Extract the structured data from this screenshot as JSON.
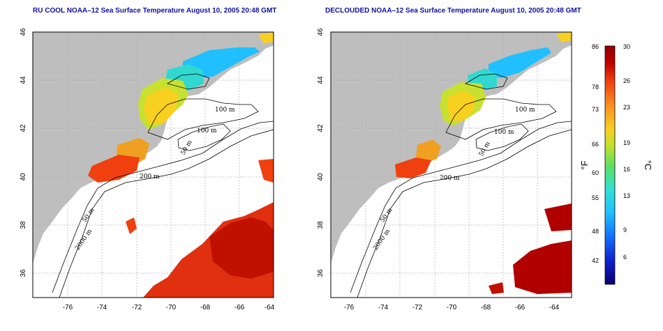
{
  "panels": [
    {
      "id": "left",
      "title": "RU COOL NOAA–12 Sea Surface Temperature August 10, 2005 20:48 GMT",
      "xticks": [
        "-76",
        "-74",
        "-72",
        "-70",
        "-68",
        "-66",
        "-64"
      ],
      "yticks": [
        "46",
        "44",
        "42",
        "40",
        "38",
        "36"
      ],
      "contour_labels": [
        "100 m",
        "100 m",
        "50 m",
        "200 m",
        "50 m",
        "2000 m"
      ]
    },
    {
      "id": "right",
      "title": "DECLOUDED NOAA–12 Sea Surface Temperature August 10, 2005 20:48 GMT",
      "xticks": [
        "-76",
        "-74",
        "-72",
        "-70",
        "-68",
        "-66",
        "-64"
      ],
      "yticks": [
        "46",
        "44",
        "42",
        "40",
        "38",
        "36"
      ],
      "contour_labels": [
        "100 m",
        "100 m",
        "50 m",
        "200 m",
        "50 m",
        "2000 m"
      ]
    }
  ],
  "colorbar": {
    "fahrenheit_ticks": [
      "86",
      "78",
      "73",
      "66",
      "60",
      "55",
      "48",
      "42"
    ],
    "celsius_ticks": [
      "30",
      "26",
      "23",
      "19",
      "16",
      "13",
      "9",
      "6"
    ],
    "unit_f": "°F",
    "unit_c": "°C",
    "colors": [
      "#08006e",
      "#1020d0",
      "#1070ff",
      "#20c0ff",
      "#30e0d0",
      "#60e060",
      "#c0e030",
      "#f8d020",
      "#f89020",
      "#f04010",
      "#c00000",
      "#900000"
    ]
  },
  "map_colors": {
    "land": "#bebebe",
    "ocean": "#ffffff",
    "grid": "#b0b0b0",
    "contour": "#000000"
  }
}
